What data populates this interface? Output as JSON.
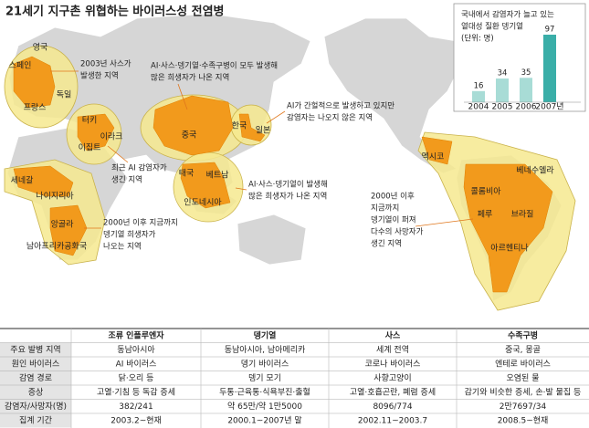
{
  "title": "21세기 지구촌 위협하는 바이러스성 전염병",
  "countries": [
    "영국",
    "스페인",
    "독일",
    "프랑스",
    "터키",
    "이라크",
    "이집트",
    "중국",
    "한국",
    "일본",
    "세네갈",
    "나이지리아",
    "앙골라",
    "남아프리카공화국",
    "태국",
    "베트남",
    "인도네시아",
    "멕시코",
    "베네수엘라",
    "콜롬비아",
    "페루",
    "브라질",
    "아르헨티나"
  ],
  "annotations": [
    [
      "2003년 사스가",
      "발생한 지역"
    ],
    [
      "AI·사스·뎅기열·수족구병이 모두 발생해",
      "많은 희생자가 나온 지역"
    ],
    [
      "AI가 간헐적으로 발생하고 있지만",
      "감염자는 나오지 않은 지역"
    ],
    [
      "최근 AI 감염자가",
      "생긴 지역"
    ],
    [
      "AI·사스·뎅기열이 발생해",
      "많은 희생자가 나온 지역"
    ],
    [
      "2000년 이후 지금까지",
      "뎅기열 희생자가",
      "나오는 지역"
    ],
    [
      "2000년 이후",
      "지금까지",
      "뎅기열이 퍼져",
      "다수의 사망자가",
      "생긴 지역"
    ]
  ],
  "chart_data": {
    "type": "bar",
    "title": [
      "국내에서 감염자가 늘고 있는",
      "열대성 질환 뎅기열"
    ],
    "unit": "(단위: 명)",
    "categories": [
      "2004",
      "2005",
      "2006",
      "2007년"
    ],
    "values": [
      16,
      34,
      35,
      97
    ],
    "colors": [
      "#a8dcd6",
      "#a8dcd6",
      "#a8dcd6",
      "#3aaea8"
    ]
  },
  "table": {
    "header": [
      "조류 인플루엔자",
      "뎅기열",
      "사스",
      "수족구병"
    ],
    "rows": [
      [
        "주요 발병 지역",
        "동남아시아",
        "동남아시아, 남아메리카",
        "세계 전역",
        "중국, 몽골"
      ],
      [
        "원인 바이러스",
        "AI 바이러스",
        "뎅기 바이러스",
        "코로나 바이러스",
        "엔테로 바이러스"
      ],
      [
        "감염 경로",
        "닭·오리 등",
        "뎅기 모기",
        "사향고양이",
        "오염된 물"
      ],
      [
        "증상",
        "고열·기침 등 독감 증세",
        "두통·근육통·식욕부진·출혈",
        "고열·호흡곤란, 폐렴 증세",
        "감기와 비슷한 증세, 손·발 물집 등"
      ],
      [
        "감염자/사망자(명)",
        "382/241",
        "약 65만/약 1만5000",
        "8096/774",
        "2만7697/34"
      ],
      [
        "집계 기간",
        "2003.2~현재",
        "2000.1~2007년 말",
        "2002.11~2003.7",
        "2008.5~현재"
      ]
    ]
  }
}
